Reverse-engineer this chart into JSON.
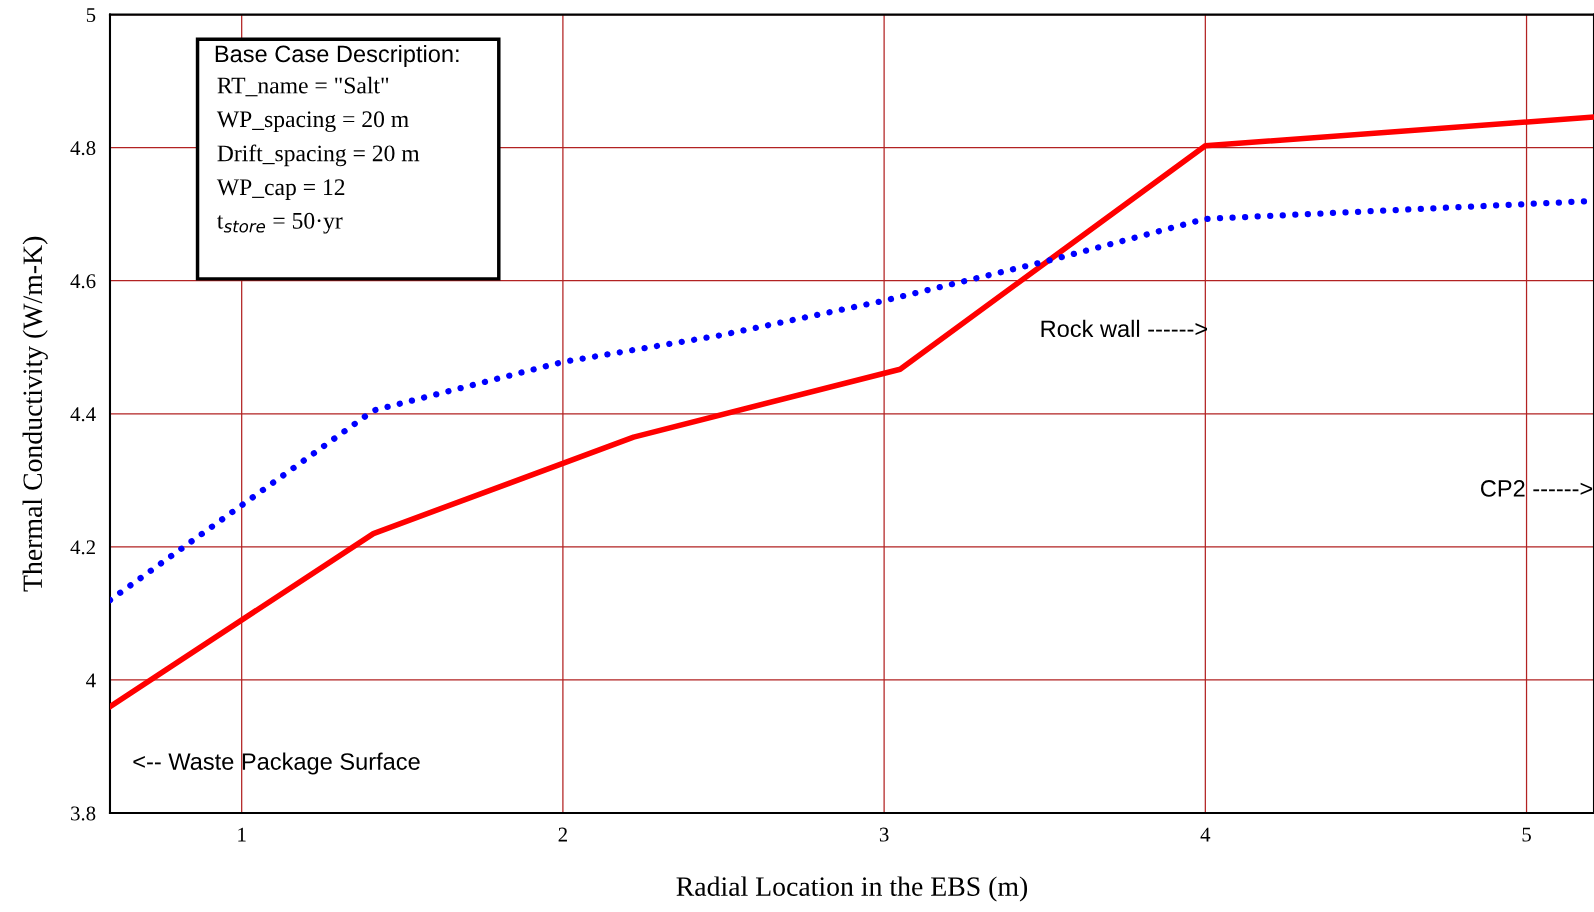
{
  "chart_data": {
    "type": "line",
    "xlabel": "Radial Location in the EBS (m)",
    "ylabel": "Thermal Conductivity (W/m-K)",
    "xlim": [
      0.59,
      5.21
    ],
    "ylim": [
      3.8,
      5
    ],
    "xticks": [
      1,
      2,
      3,
      4,
      5
    ],
    "yticks": [
      3.8,
      4,
      4.2,
      4.4,
      4.6,
      4.8,
      5
    ],
    "grid": true,
    "series": [
      {
        "color": "#ff0000",
        "line_style": "solid",
        "x": [
          0.59,
          1.41,
          2.22,
          3.05,
          4.0,
          5.21
        ],
        "values": [
          3.96,
          4.22,
          4.365,
          4.467,
          4.803,
          4.846
        ]
      },
      {
        "color": "#0000ff",
        "line_style": "dotted",
        "x": [
          0.59,
          1.41,
          2.0,
          2.49,
          3.0,
          3.51,
          4.0,
          5.21
        ],
        "values": [
          4.12,
          4.405,
          4.478,
          4.518,
          4.57,
          4.63,
          4.693,
          4.72
        ]
      }
    ],
    "annotations": [
      "Base Case Description:",
      "RT_name = \"Salt\"\nWP_spacing = 20 m\nDrift_spacing = 20 m\nWP_cap = 12\nt$_{store}$ = 50·yr",
      "<-- Waste Package Surface",
      "Rock wall ------>",
      "CP2 ------>"
    ]
  }
}
